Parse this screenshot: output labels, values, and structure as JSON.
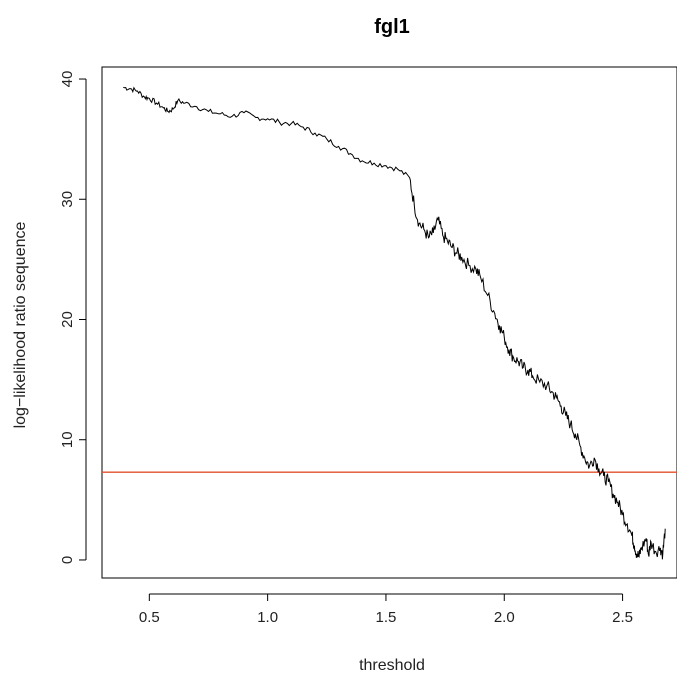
{
  "chart_data": {
    "type": "line",
    "title": "fgl1",
    "xlabel": "threshold",
    "ylabel": "log−likelihood ratio sequence",
    "xlim": [
      0.3,
      2.73
    ],
    "ylim": [
      -1.5,
      41
    ],
    "xticks": [
      0.5,
      1.0,
      1.5,
      2.0,
      2.5
    ],
    "xtick_labels": [
      "0.5",
      "1.0",
      "1.5",
      "2.0",
      "2.5"
    ],
    "yticks": [
      0,
      10,
      20,
      30,
      40
    ],
    "ytick_labels": [
      "0",
      "10",
      "20",
      "30",
      "40"
    ],
    "grid": false,
    "legend": "none",
    "series": [
      {
        "color": "#000000",
        "x": [
          0.39,
          0.42,
          0.45,
          0.48,
          0.5,
          0.53,
          0.56,
          0.58,
          0.6,
          0.62,
          0.65,
          0.7,
          0.75,
          0.8,
          0.85,
          0.9,
          0.95,
          1.0,
          1.05,
          1.1,
          1.15,
          1.2,
          1.25,
          1.3,
          1.35,
          1.4,
          1.45,
          1.5,
          1.55,
          1.6,
          1.62,
          1.64,
          1.66,
          1.68,
          1.7,
          1.72,
          1.74,
          1.76,
          1.78,
          1.8,
          1.82,
          1.85,
          1.88,
          1.9,
          1.93,
          1.96,
          1.98,
          2.0,
          2.02,
          2.04,
          2.06,
          2.08,
          2.1,
          2.12,
          2.15,
          2.18,
          2.2,
          2.22,
          2.24,
          2.26,
          2.28,
          2.3,
          2.32,
          2.34,
          2.36,
          2.38,
          2.4,
          2.42,
          2.44,
          2.46,
          2.48,
          2.5,
          2.52,
          2.54,
          2.55,
          2.56,
          2.57,
          2.58,
          2.6,
          2.61,
          2.62,
          2.64,
          2.66,
          2.67,
          2.68
        ],
        "y": [
          39.3,
          39.2,
          39.0,
          38.5,
          38.4,
          38.0,
          37.6,
          37.3,
          37.5,
          38.2,
          38.0,
          37.7,
          37.3,
          37.1,
          36.9,
          37.2,
          36.8,
          36.7,
          36.4,
          36.3,
          36.0,
          35.5,
          35.0,
          34.4,
          33.8,
          33.2,
          33.0,
          32.8,
          32.5,
          31.8,
          29.5,
          28.0,
          27.5,
          26.8,
          27.2,
          28.3,
          27.0,
          26.5,
          26.0,
          25.5,
          25.2,
          24.5,
          24.2,
          23.5,
          22.0,
          20.5,
          19.5,
          18.5,
          17.5,
          16.8,
          16.5,
          16.0,
          15.8,
          15.3,
          14.8,
          14.5,
          14.0,
          13.5,
          12.8,
          12.0,
          11.3,
          10.5,
          9.5,
          8.5,
          7.8,
          8.5,
          7.6,
          7.0,
          6.5,
          5.5,
          4.8,
          3.8,
          3.0,
          2.0,
          1.2,
          0.5,
          0.3,
          1.0,
          1.8,
          0.4,
          1.5,
          0.7,
          1.0,
          0.5,
          2.6
        ]
      }
    ],
    "reference_lines": [
      {
        "axis": "y",
        "value": 7.3,
        "color": "#e0502a"
      }
    ]
  }
}
